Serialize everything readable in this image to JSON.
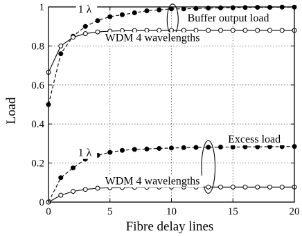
{
  "chart_data": {
    "type": "line",
    "title": "",
    "xlabel": "Fibre delay lines",
    "ylabel": "Load",
    "xlim": [
      0,
      20
    ],
    "ylim": [
      0,
      1
    ],
    "xticks": [
      0,
      5,
      10,
      15,
      20
    ],
    "yticks": [
      0,
      0.2,
      0.4,
      0.6,
      0.8,
      1
    ],
    "x_tick_labels": [
      "0",
      "5",
      "10",
      "15",
      "20"
    ],
    "y_tick_labels": [
      "0",
      "0.2",
      "0.4",
      "0.6",
      "0.8",
      "1"
    ],
    "grid": true,
    "x": [
      0,
      1,
      2,
      3,
      4,
      5,
      6,
      7,
      8,
      9,
      10,
      11,
      12,
      13,
      14,
      15,
      16,
      17,
      18,
      19,
      20
    ],
    "series": [
      {
        "name": "1 λ",
        "group": "Buffer output load",
        "marker": "filled",
        "line": "dashed",
        "values": [
          0.5,
          0.76,
          0.85,
          0.9,
          0.93,
          0.95,
          0.96,
          0.97,
          0.98,
          0.985,
          0.99,
          0.99,
          0.992,
          0.994,
          0.995,
          0.996,
          0.997,
          0.998,
          0.998,
          0.999,
          0.999
        ]
      },
      {
        "name": "WDM 4 wavelengths",
        "group": "Buffer output load",
        "marker": "open",
        "line": "solid",
        "values": [
          0.665,
          0.8,
          0.845,
          0.863,
          0.872,
          0.876,
          0.878,
          0.879,
          0.88,
          0.88,
          0.88,
          0.88,
          0.88,
          0.88,
          0.88,
          0.88,
          0.88,
          0.88,
          0.88,
          0.88,
          0.88
        ]
      },
      {
        "name": "1 λ",
        "group": "Excess load",
        "marker": "filled",
        "line": "dashed",
        "values": [
          0.0,
          0.125,
          0.175,
          0.22,
          0.24,
          0.255,
          0.265,
          0.27,
          0.272,
          0.275,
          0.277,
          0.279,
          0.28,
          0.281,
          0.282,
          0.282,
          0.283,
          0.283,
          0.284,
          0.284,
          0.285
        ]
      },
      {
        "name": "WDM 4 wavelengths",
        "group": "Excess load",
        "marker": "open",
        "line": "solid",
        "values": [
          0.0,
          0.035,
          0.055,
          0.065,
          0.071,
          0.074,
          0.075,
          0.076,
          0.076,
          0.077,
          0.077,
          0.077,
          0.077,
          0.077,
          0.077,
          0.077,
          0.077,
          0.077,
          0.077,
          0.077,
          0.077
        ]
      }
    ],
    "annotations": [
      {
        "name": "buffer-1lambda-label",
        "text": "1 λ",
        "x": 2.4,
        "y": 0.97
      },
      {
        "name": "buffer-wdm-label",
        "text": "WDM 4 wavelengths",
        "x": 4.6,
        "y": 0.825
      },
      {
        "name": "buffer-output-load-label",
        "text": "Buffer output load",
        "x": 11.3,
        "y": 0.925
      },
      {
        "name": "excess-1lambda-label",
        "text": "1 λ",
        "x": 2.4,
        "y": 0.235
      },
      {
        "name": "excess-wdm-label",
        "text": "WDM 4 wavelengths",
        "x": 4.6,
        "y": 0.09
      },
      {
        "name": "excess-load-label",
        "text": "Excess load",
        "x": 14.6,
        "y": 0.305
      }
    ],
    "ellipses": [
      {
        "name": "buffer-output-load-ellipse",
        "cx": 10.1,
        "cy": 0.935,
        "rx": 0.45,
        "ry": 0.08
      },
      {
        "name": "excess-load-ellipse",
        "cx": 13.0,
        "cy": 0.18,
        "rx": 0.55,
        "ry": 0.135
      }
    ]
  }
}
